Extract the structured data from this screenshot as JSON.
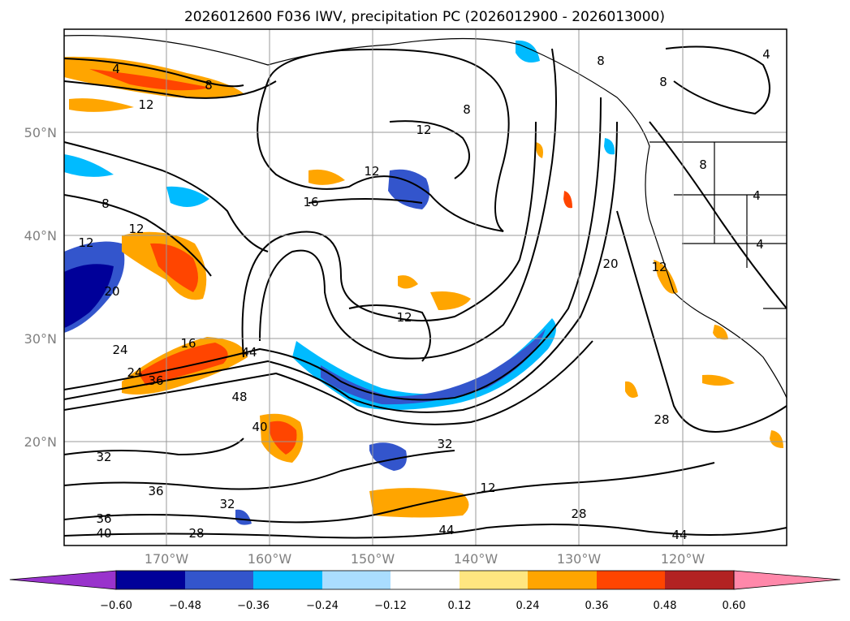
{
  "title": "2026012600 F036 IWV, precipitation PC (2026012900 - 2026013000)",
  "map": {
    "lat_labels": [
      "50°N",
      "40°N",
      "30°N",
      "20°N"
    ],
    "lon_labels": [
      "170°W",
      "160°W",
      "150°W",
      "140°W",
      "130°W",
      "120°W"
    ],
    "contour_labels": [
      "4",
      "8",
      "12",
      "8",
      "12",
      "8",
      "8",
      "12",
      "12",
      "16",
      "12",
      "12",
      "20",
      "24",
      "16",
      "24",
      "36",
      "44",
      "48",
      "40",
      "32",
      "32",
      "36",
      "32",
      "36",
      "28",
      "40",
      "44",
      "28",
      "28",
      "44",
      "20",
      "12",
      "8",
      "4",
      "4",
      "4",
      "8",
      "12"
    ],
    "contour_color": "#000000",
    "grid": true
  },
  "colorbar": {
    "labels": [
      "−0.60",
      "−0.48",
      "−0.36",
      "−0.24",
      "−0.12",
      "0.12",
      "0.24",
      "0.36",
      "0.48",
      "0.60"
    ],
    "colors": [
      "#9933cc",
      "#000099",
      "#3355cc",
      "#00bbff",
      "#aaddff",
      "#ffffff",
      "#ffe680",
      "#ffa500",
      "#ff4500",
      "#b22222",
      "#ff88aa"
    ]
  }
}
